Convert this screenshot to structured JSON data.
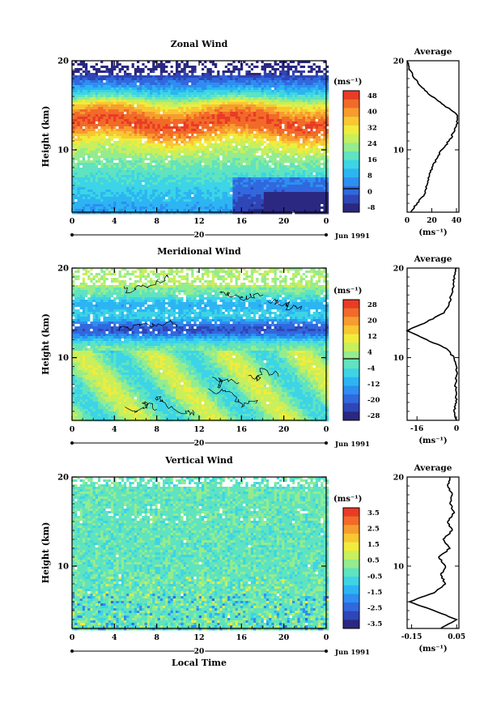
{
  "chart_data": [
    {
      "type": "heatmap",
      "title": "Zonal Wind",
      "ylabel": "Height (km)",
      "y_ticks": [
        "20",
        "10"
      ],
      "ylim": [
        3,
        20
      ],
      "x_ticks": [
        "0",
        "4",
        "8",
        "12",
        "16",
        "20",
        "0"
      ],
      "xlim": [
        0,
        24
      ],
      "date_axis": {
        "label": "20",
        "tail": "Jun 1991"
      },
      "colorbar": {
        "unit": "(ms⁻¹)",
        "ticks": [
          "48",
          "40",
          "32",
          "24",
          "16",
          "8",
          "0",
          "-8"
        ],
        "range": [
          -8,
          52
        ]
      },
      "average_profile": {
        "title": "Average",
        "y_ticks": [
          "20",
          "10"
        ],
        "x_ticks": [
          "0",
          "20",
          "40"
        ],
        "xlim": [
          0,
          42
        ],
        "xlabel": "(ms⁻¹)",
        "points": [
          [
            3,
            3
          ],
          [
            8,
            4
          ],
          [
            14,
            5
          ],
          [
            16,
            6
          ],
          [
            18,
            7
          ],
          [
            20,
            8
          ],
          [
            24,
            9
          ],
          [
            28,
            10
          ],
          [
            34,
            11
          ],
          [
            38,
            12
          ],
          [
            41,
            13
          ],
          [
            40,
            14
          ],
          [
            30,
            15
          ],
          [
            20,
            16
          ],
          [
            12,
            17
          ],
          [
            6,
            18
          ],
          [
            2,
            19
          ],
          [
            0,
            20
          ]
        ]
      }
    },
    {
      "type": "heatmap",
      "title": "Meridional Wind",
      "ylabel": "Height (km)",
      "y_ticks": [
        "20",
        "10"
      ],
      "ylim": [
        3,
        20
      ],
      "x_ticks": [
        "0",
        "4",
        "8",
        "12",
        "16",
        "20",
        "0"
      ],
      "xlim": [
        0,
        24
      ],
      "date_axis": {
        "label": "20",
        "tail": "Jun 1991"
      },
      "colorbar": {
        "unit": "(ms⁻¹)",
        "ticks": [
          "28",
          "20",
          "12",
          "4",
          "-4",
          "-12",
          "-20",
          "-28"
        ],
        "range": [
          -32,
          32
        ]
      },
      "average_profile": {
        "title": "Average",
        "y_ticks": [
          "20",
          "10"
        ],
        "x_ticks": [
          "-16",
          "0"
        ],
        "xlim": [
          -20,
          1
        ],
        "xlabel": "(ms⁻¹)",
        "points": [
          [
            0,
            3
          ],
          [
            -1,
            4
          ],
          [
            0,
            5
          ],
          [
            0,
            6
          ],
          [
            -0.5,
            7
          ],
          [
            0,
            8
          ],
          [
            0,
            9
          ],
          [
            -1,
            10
          ],
          [
            -4,
            11
          ],
          [
            -12,
            12
          ],
          [
            -20,
            13
          ],
          [
            -12,
            14
          ],
          [
            -5,
            15
          ],
          [
            -3,
            16
          ],
          [
            -2,
            17
          ],
          [
            -1,
            18
          ],
          [
            -1,
            19
          ],
          [
            0,
            20
          ]
        ]
      }
    },
    {
      "type": "heatmap",
      "title": "Vertical Wind",
      "ylabel": "Height (km)",
      "xlabel": "Local Time",
      "y_ticks": [
        "20",
        "10"
      ],
      "ylim": [
        3,
        20
      ],
      "x_ticks": [
        "0",
        "4",
        "8",
        "12",
        "16",
        "20",
        "0"
      ],
      "xlim": [
        0,
        24
      ],
      "date_axis": {
        "label": "20",
        "tail": "Jun 1991"
      },
      "colorbar": {
        "unit": "(ms⁻¹)",
        "ticks": [
          "3.5",
          "2.5",
          "1.5",
          "0.5",
          "-0.5",
          "-1.5",
          "-2.5",
          "-3.5"
        ],
        "range": [
          -4,
          4
        ]
      },
      "average_profile": {
        "title": "Average",
        "y_ticks": [
          "20",
          "10"
        ],
        "x_ticks": [
          "-0.15",
          "0.05"
        ],
        "xlim": [
          -0.17,
          0.06
        ],
        "xlabel": "(ms⁻¹)",
        "points": [
          [
            -0.02,
            3
          ],
          [
            0.05,
            4
          ],
          [
            -0.05,
            5
          ],
          [
            -0.16,
            6
          ],
          [
            -0.05,
            7
          ],
          [
            0.0,
            8
          ],
          [
            -0.02,
            9
          ],
          [
            0.0,
            10
          ],
          [
            -0.03,
            11
          ],
          [
            0.02,
            12
          ],
          [
            -0.01,
            13
          ],
          [
            0.03,
            14
          ],
          [
            0.01,
            15
          ],
          [
            0.04,
            16
          ],
          [
            0.02,
            17
          ],
          [
            0.03,
            18
          ],
          [
            0.01,
            19
          ],
          [
            0.02,
            20
          ]
        ]
      }
    }
  ]
}
